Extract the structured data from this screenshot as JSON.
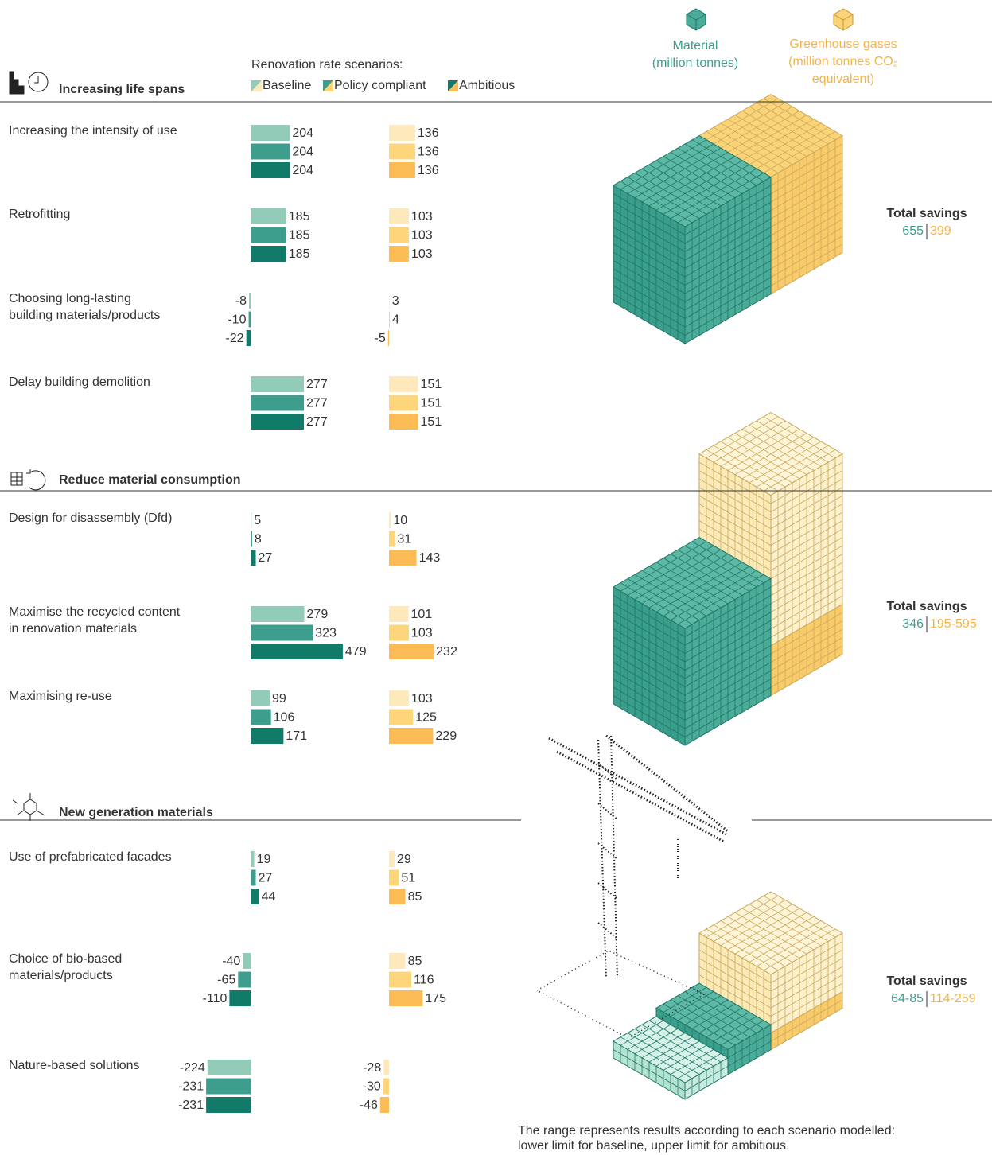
{
  "legend": {
    "scenarios_title": "Renovation rate scenarios:",
    "scenarios": [
      "Baseline",
      "Policy compliant",
      "Ambitious"
    ],
    "material": [
      "Material",
      "(million tonnes)"
    ],
    "ghg": [
      "Greenhouse gases",
      "(million tonnes CO₂",
      "equivalent)"
    ]
  },
  "colors": {
    "material": [
      "#93cbb9",
      "#3d9e8e",
      "#117a68"
    ],
    "ghg": [
      "#fde9bc",
      "#fdd57a",
      "#fbbb55"
    ]
  },
  "sections": [
    {
      "title": "Increasing life spans",
      "rows": [
        {
          "label": [
            "Increasing the intensity of use"
          ],
          "material": [
            204,
            204,
            204
          ],
          "ghg": [
            136,
            136,
            136
          ]
        },
        {
          "label": [
            "Retrofitting"
          ],
          "material": [
            185,
            185,
            185
          ],
          "ghg": [
            103,
            103,
            103
          ]
        },
        {
          "label": [
            "Choosing long-lasting",
            "building materials/products"
          ],
          "material": [
            -8,
            -10,
            -22
          ],
          "ghg": [
            3,
            4,
            -5
          ]
        },
        {
          "label": [
            "Delay building demolition"
          ],
          "material": [
            277,
            277,
            277
          ],
          "ghg": [
            151,
            151,
            151
          ]
        }
      ],
      "total": {
        "title": "Total savings",
        "material": 655,
        "ghg": 399
      }
    },
    {
      "title": "Reduce material consumption",
      "rows": [
        {
          "label": [
            "Design for disassembly (Dfd)"
          ],
          "material": [
            5,
            8,
            27
          ],
          "ghg": [
            10,
            31,
            143
          ]
        },
        {
          "label": [
            "Maximise the recycled content",
            "in renovation materials"
          ],
          "material": [
            279,
            323,
            479
          ],
          "ghg": [
            101,
            103,
            232
          ]
        },
        {
          "label": [
            "Maximising re-use"
          ],
          "material": [
            99,
            106,
            171
          ],
          "ghg": [
            103,
            125,
            229
          ]
        }
      ],
      "total": {
        "title": "Total savings",
        "material": 346,
        "ghg": "195-595"
      }
    },
    {
      "title": "New generation materials",
      "rows": [
        {
          "label": [
            "Use of prefabricated facades"
          ],
          "material": [
            19,
            27,
            44
          ],
          "ghg": [
            29,
            51,
            85
          ]
        },
        {
          "label": [
            "Choice of bio-based",
            "materials/products"
          ],
          "material": [
            -40,
            -65,
            -110
          ],
          "ghg": [
            85,
            116,
            175
          ]
        },
        {
          "label": [
            "Nature-based solutions"
          ],
          "material": [
            -224,
            -231,
            -231
          ],
          "ghg": [
            -28,
            -30,
            -46
          ]
        }
      ],
      "total": {
        "title": "Total savings",
        "material": "64-85",
        "ghg": "114-259"
      }
    }
  ],
  "note": [
    "The range represents results according to each scenario modelled:",
    "lower limit for baseline, upper limit for ambitious."
  ]
}
